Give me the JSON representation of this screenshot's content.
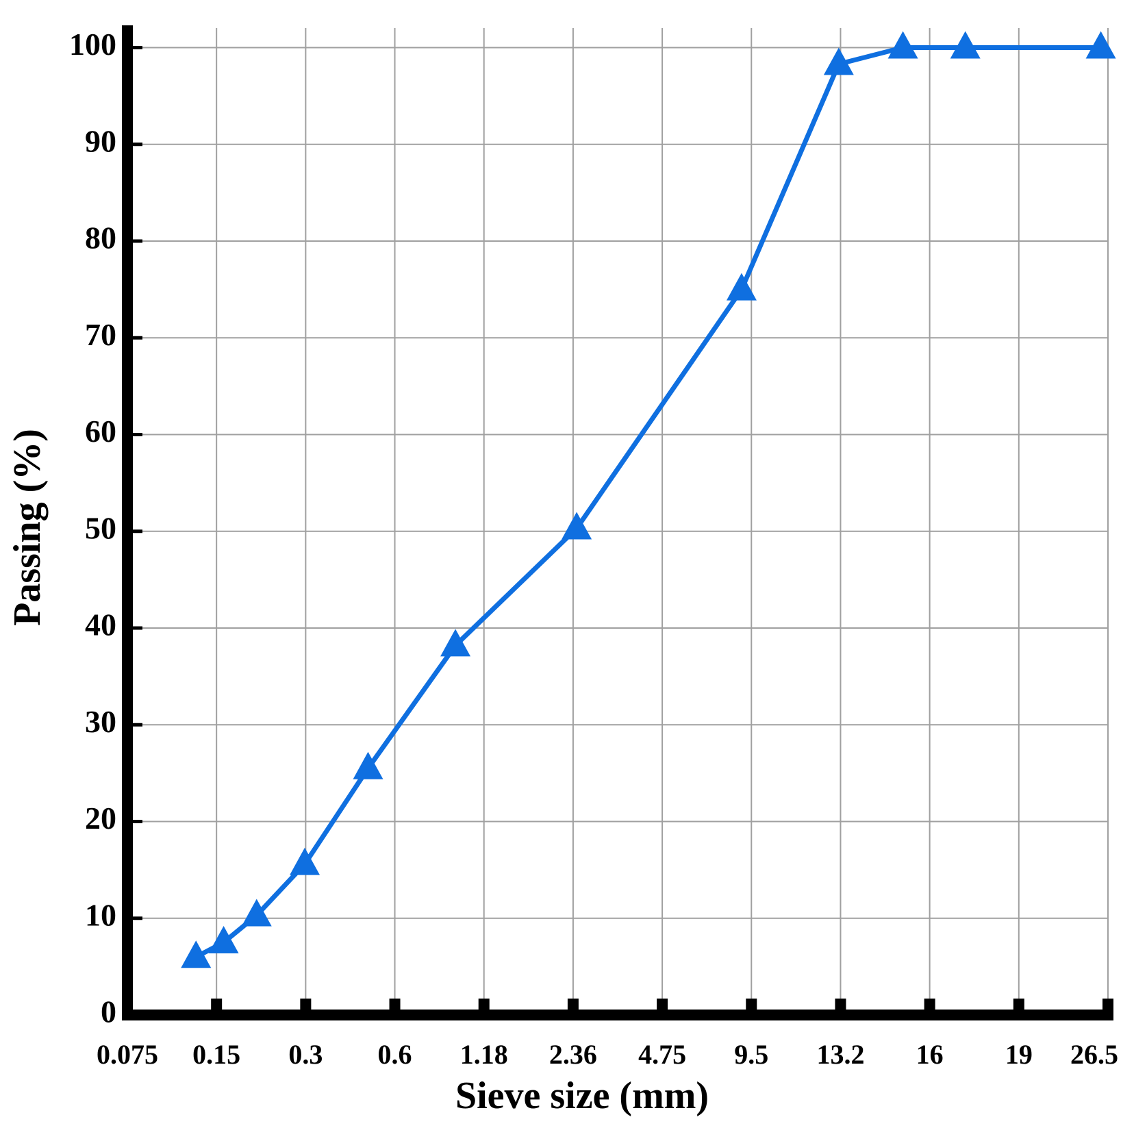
{
  "chart_data": {
    "type": "line",
    "x_label": "Sieve size (mm)",
    "y_label": "Passing (%)",
    "categories": [
      "0.075",
      "0.15",
      "0.3",
      "0.6",
      "1.18",
      "2.36",
      "4.75",
      "9.5",
      "13.2",
      "16",
      "19",
      "26.5"
    ],
    "xlim": [
      0,
      11
    ],
    "ylim": [
      0,
      102.3
    ],
    "yticks": [
      0,
      10,
      20,
      30,
      40,
      50,
      60,
      70,
      80,
      90,
      100
    ],
    "grid": true,
    "series": [
      {
        "color": "#0f6fe0",
        "x": [
          0.77,
          1.08,
          1.45,
          1.99,
          2.7,
          3.68,
          5.04,
          6.89,
          7.98,
          8.7,
          9.4,
          10.92
        ],
        "values": [
          6,
          7.5,
          10.3,
          15.6,
          25.5,
          38.2,
          50.3,
          75,
          98.3,
          100,
          100,
          100
        ]
      }
    ]
  }
}
